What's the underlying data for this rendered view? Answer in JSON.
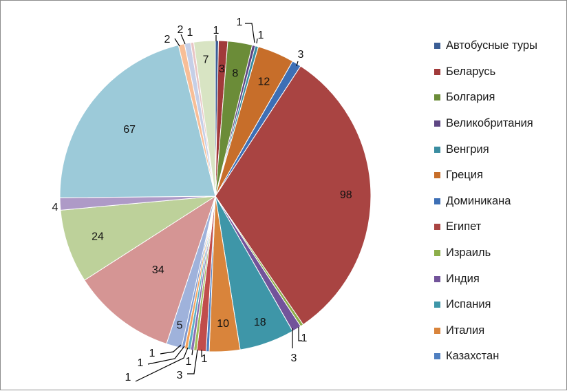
{
  "chart_data": {
    "type": "pie",
    "slices": [
      {
        "value": 1,
        "color": "#3b5e95"
      },
      {
        "value": 3,
        "color": "#a13a3a"
      },
      {
        "value": 8,
        "color": "#6b8c38"
      },
      {
        "value": 1,
        "color": "#5e4683"
      },
      {
        "value": 1,
        "color": "#3a8da1"
      },
      {
        "value": 12,
        "color": "#c76e2a"
      },
      {
        "value": 3,
        "color": "#3d6fb5"
      },
      {
        "value": 98,
        "color": "#a94442"
      },
      {
        "value": 1,
        "color": "#8cae4a"
      },
      {
        "value": 3,
        "color": "#72539a"
      },
      {
        "value": 18,
        "color": "#3e96a8"
      },
      {
        "value": 10,
        "color": "#d9843b"
      },
      {
        "value": 1,
        "color": "#4f7fc0"
      },
      {
        "value": 3,
        "color": "#c14d4b"
      },
      {
        "value": 1,
        "color": "#9fbe5c"
      },
      {
        "value": 1,
        "color": "#8a6db0"
      },
      {
        "value": 1,
        "color": "#5bb0c5"
      },
      {
        "value": 1,
        "color": "#f4a15a"
      },
      {
        "value": 1,
        "color": "#7f9ad0"
      },
      {
        "value": 5,
        "color": "#9fb2db"
      },
      {
        "value": 34,
        "color": "#d59594"
      },
      {
        "value": 24,
        "color": "#bdd19a"
      },
      {
        "value": 4,
        "color": "#ae9ac7"
      },
      {
        "value": 67,
        "color": "#9ccad9"
      },
      {
        "value": 2,
        "color": "#f7be97"
      },
      {
        "value": 2,
        "color": "#c5cfe7"
      },
      {
        "value": 1,
        "color": "#e8c5c4"
      },
      {
        "value": 7,
        "color": "#d8e4c3"
      }
    ],
    "legend": [
      {
        "name": "Автобусные туры",
        "color": "#3b5e95"
      },
      {
        "name": "Беларусь",
        "color": "#a13a3a"
      },
      {
        "name": "Болгария",
        "color": "#6b8c38"
      },
      {
        "name": "Великобритания",
        "color": "#5e4683"
      },
      {
        "name": "Венгрия",
        "color": "#3a8da1"
      },
      {
        "name": "Греция",
        "color": "#c76e2a"
      },
      {
        "name": "Доминикана",
        "color": "#3d6fb5"
      },
      {
        "name": "Египет",
        "color": "#a94442"
      },
      {
        "name": "Израиль",
        "color": "#8cae4a"
      },
      {
        "name": "Индия",
        "color": "#72539a"
      },
      {
        "name": "Испания",
        "color": "#3e96a8"
      },
      {
        "name": "Италия",
        "color": "#d9843b"
      },
      {
        "name": "Казахстан",
        "color": "#4f7fc0"
      }
    ],
    "legend_position": "right"
  }
}
